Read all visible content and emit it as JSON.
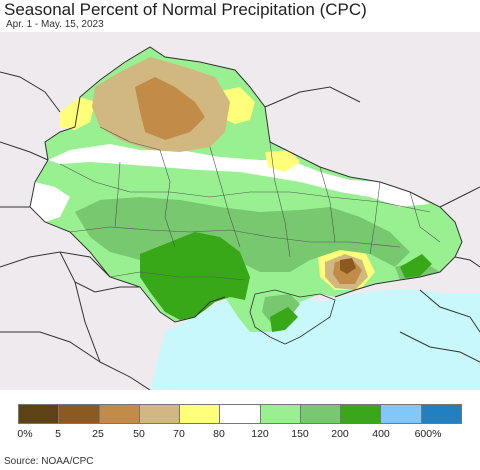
{
  "title": "Seasonal Percent of Normal Precipitation (CPC)",
  "subtitle": "Apr. 1 - May. 15, 2023",
  "source": "Source: NOAA/CPC",
  "legend": {
    "colors": [
      "#5c4214",
      "#8c5a20",
      "#c28c48",
      "#d0b880",
      "#ffff7a",
      "#ffffff",
      "#98f090",
      "#78c870",
      "#38a818",
      "#80c8fa",
      "#2080c0"
    ],
    "labels": [
      "0%",
      "5",
      "25",
      "50",
      "70",
      "80",
      "120",
      "150",
      "200",
      "400",
      "600%"
    ]
  },
  "map_colors": {
    "background": "#eeeaee",
    "sea": "#c8f8fc",
    "border": "#333333",
    "internal_border": "#555555"
  }
}
